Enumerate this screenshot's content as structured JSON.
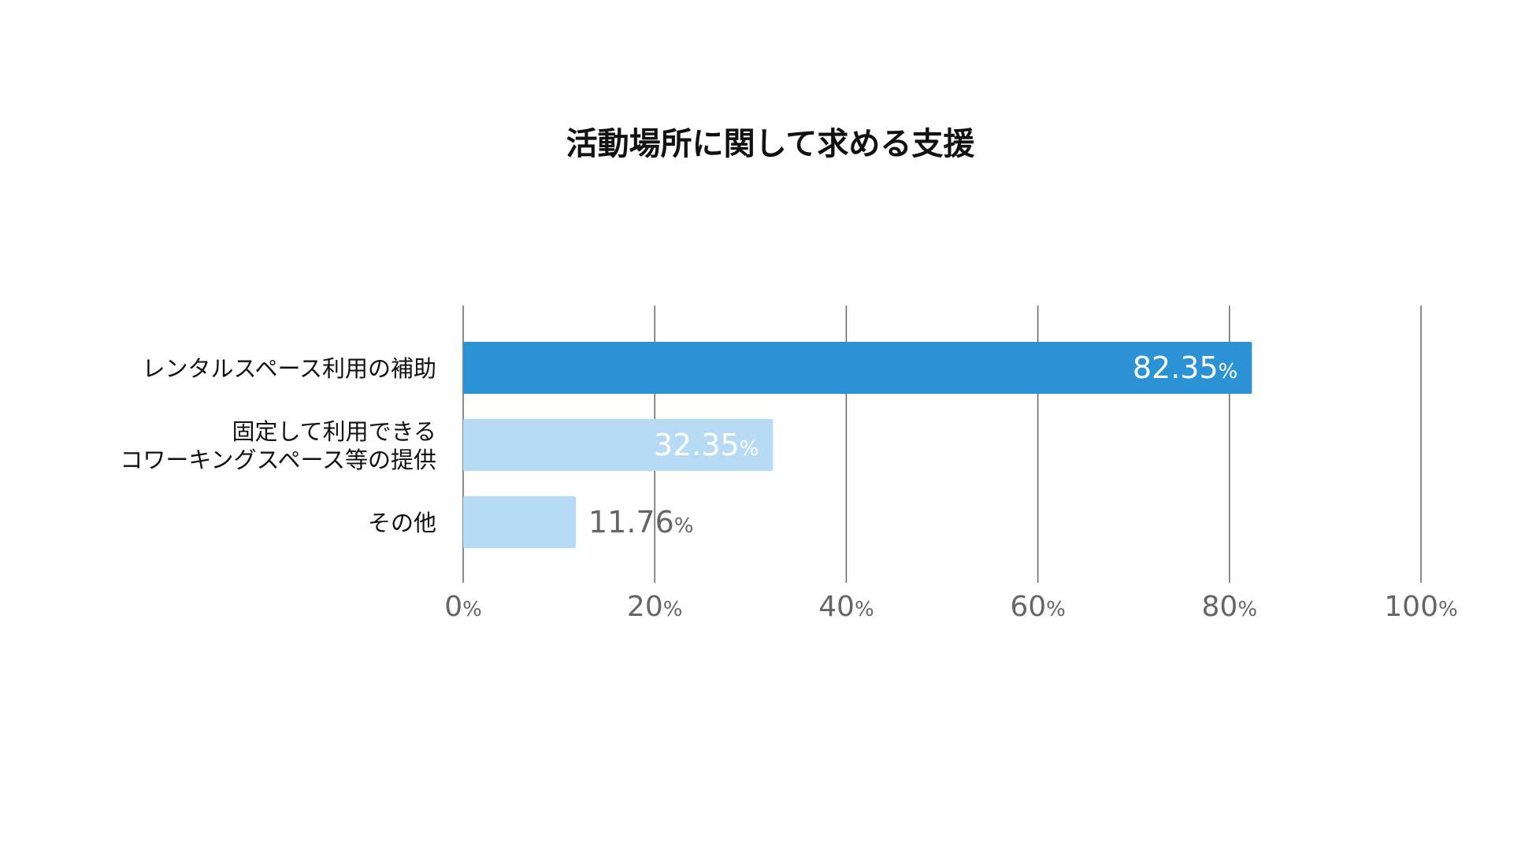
{
  "chart_data": {
    "type": "bar",
    "orientation": "horizontal",
    "title": "活動場所に関して求める支援",
    "categories": [
      [
        "レンタルスペース利用の補助"
      ],
      [
        "固定して利用できる",
        "コワーキングスペース等の提供"
      ],
      [
        "その他"
      ]
    ],
    "values": [
      82.35,
      32.35,
      11.76
    ],
    "value_labels": [
      "82.35",
      "32.35",
      "11.76"
    ],
    "value_unit": "%",
    "xlim": [
      0,
      100
    ],
    "x_ticks": [
      0,
      20,
      40,
      60,
      80,
      100
    ],
    "tick_unit": "%",
    "grid": true,
    "legend": "none",
    "colors": {
      "highlight_bar": "#2b92d6",
      "bar": "#b7dbf5",
      "inside_label": "#ffffff",
      "outside_label": "#666666",
      "tick_label": "#666666",
      "grid": "#666666",
      "category_label": "#111111",
      "title": "#111111"
    }
  }
}
